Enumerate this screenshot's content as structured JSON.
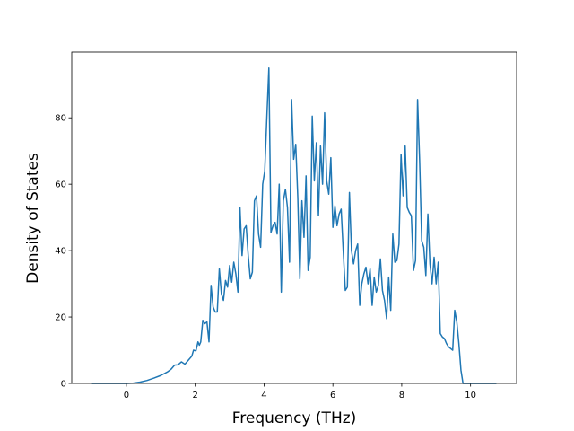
{
  "chart_data": {
    "type": "line",
    "xlabel": "Frequency (THz)",
    "ylabel": "Density of States",
    "x": [
      -1,
      0,
      0.2,
      0.4,
      0.6,
      0.8,
      1,
      1.2,
      1.3,
      1.4,
      1.5,
      1.6,
      1.7,
      1.8,
      1.9,
      1.95,
      2.02,
      2.08,
      2.12,
      2.16,
      2.22,
      2.28,
      2.34,
      2.4,
      2.46,
      2.52,
      2.58,
      2.64,
      2.7,
      2.76,
      2.82,
      2.88,
      2.94,
      3,
      3.06,
      3.12,
      3.18,
      3.24,
      3.3,
      3.36,
      3.42,
      3.48,
      3.54,
      3.6,
      3.66,
      3.72,
      3.78,
      3.84,
      3.9,
      3.96,
      4.02,
      4.08,
      4.14,
      4.2,
      4.26,
      4.32,
      4.38,
      4.44,
      4.5,
      4.56,
      4.62,
      4.68,
      4.74,
      4.8,
      4.86,
      4.92,
      4.98,
      5.04,
      5.1,
      5.16,
      5.22,
      5.28,
      5.34,
      5.4,
      5.46,
      5.52,
      5.58,
      5.64,
      5.7,
      5.76,
      5.82,
      5.88,
      5.94,
      6,
      6.06,
      6.12,
      6.18,
      6.24,
      6.3,
      6.36,
      6.42,
      6.48,
      6.54,
      6.6,
      6.66,
      6.72,
      6.78,
      6.84,
      6.9,
      6.96,
      7.02,
      7.08,
      7.14,
      7.2,
      7.26,
      7.32,
      7.38,
      7.44,
      7.5,
      7.56,
      7.62,
      7.68,
      7.74,
      7.8,
      7.86,
      7.92,
      7.98,
      8.04,
      8.1,
      8.16,
      8.22,
      8.28,
      8.34,
      8.4,
      8.46,
      8.52,
      8.58,
      8.64,
      8.7,
      8.76,
      8.82,
      8.88,
      8.94,
      9,
      9.06,
      9.12,
      9.18,
      9.24,
      9.3,
      9.36,
      9.42,
      9.48,
      9.54,
      9.6,
      9.66,
      9.72,
      9.78,
      10.75
    ],
    "series": [
      {
        "color": "#1f77b4",
        "values": [
          0,
          0,
          0.1,
          0.4,
          0.9,
          1.6,
          2.4,
          3.5,
          4.3,
          5.5,
          5.6,
          6.5,
          5.8,
          7,
          8.2,
          10,
          9.8,
          12.5,
          11.5,
          12.5,
          19,
          18,
          18.5,
          12.5,
          29.5,
          23,
          21.5,
          21.5,
          34.5,
          27,
          25,
          31,
          29,
          35.5,
          30.5,
          36.5,
          33,
          27.5,
          53,
          38.5,
          46.5,
          47.5,
          38.5,
          31.5,
          33.5,
          55,
          56.5,
          45,
          41,
          60,
          64,
          80,
          95,
          45.5,
          47.5,
          48.5,
          45,
          60,
          27.5,
          55,
          58.5,
          53,
          36.5,
          85.5,
          67.5,
          72,
          56,
          31.5,
          55,
          44,
          62.5,
          34,
          38,
          80.5,
          61,
          72.5,
          50.5,
          71.5,
          60,
          81.5,
          61,
          57,
          68,
          47,
          53.5,
          47.5,
          51,
          52.5,
          40,
          28,
          29,
          57.5,
          40,
          36,
          40,
          42,
          23.5,
          30,
          33,
          35,
          30,
          34.5,
          23.5,
          32,
          27.5,
          29.5,
          37.5,
          28,
          25,
          19.5,
          32,
          22,
          45,
          36.5,
          37,
          42,
          69,
          56.5,
          71.5,
          53,
          51.5,
          50.5,
          34,
          37,
          85.5,
          67,
          43,
          41,
          32.5,
          51,
          36,
          30,
          38,
          30,
          36.5,
          15,
          14,
          13.5,
          12,
          11,
          10.5,
          10,
          22,
          18.5,
          12,
          4,
          0,
          0
        ]
      }
    ],
    "xlim": [
      -1.5875,
      11.3375
    ],
    "ylim": [
      0,
      99.8
    ],
    "xticks": [
      0,
      2,
      4,
      6,
      8,
      10
    ],
    "yticks": [
      0,
      20,
      40,
      60,
      80
    ]
  }
}
